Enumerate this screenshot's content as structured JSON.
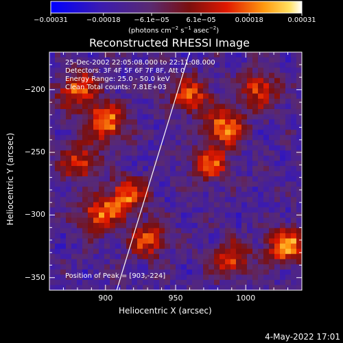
{
  "chart_data": {
    "type": "heatmap",
    "title": "Reconstructed RHESSI Image",
    "xlabel": "Heliocentric X (arcsec)",
    "ylabel": "Heliocentric Y (arcsec)",
    "xlim": [
      860,
      1040
    ],
    "ylim": [
      -360,
      -170
    ],
    "x_ticks": [
      900,
      950,
      1000
    ],
    "y_ticks": [
      -200,
      -250,
      -300,
      -350
    ],
    "x_tick_labels": [
      "900",
      "950",
      "1000"
    ],
    "y_tick_labels": [
      "−200",
      "−250",
      "−300",
      "−350"
    ],
    "colorbar": {
      "range": [
        -0.00031,
        0.00031
      ],
      "tick_values": [
        -0.00031,
        -0.00018,
        -6.1e-05,
        6.1e-05,
        0.00018,
        0.00031
      ],
      "tick_labels": [
        "−0.00031",
        "−0.00018",
        "−6.1e−05",
        "6.1e−05",
        "0.00018",
        "0.00031"
      ],
      "units_text": "(photons cm",
      "units_exp1": "−2",
      "units_mid1": " s",
      "units_exp2": "−1",
      "units_mid2": " asec",
      "units_exp3": "−2",
      "units_end": ")"
    },
    "info_lines": [
      "25-Dec-2002 22:05:08.000 to 22:11:08.000",
      "Detectors: 3F 4F 5F 6F 7F 8F, Att 0",
      "Energy Range: 25.0 - 50.0 keV",
      "Clean     Total counts: 7.81E+03"
    ],
    "peak_label": "Position of Peak = [903,-224]",
    "peak_position": [
      903,
      -224
    ],
    "limb_line": [
      [
        908,
        -360
      ],
      [
        960,
        -170
      ]
    ],
    "map_description_values": {
      "grid": false,
      "colormap": "blue-purple-red-orange-yellow-white"
    },
    "hot_spots": [
      {
        "x": 900,
        "y": -226,
        "level": 0.95
      },
      {
        "x": 882,
        "y": -258,
        "level": 0.7
      },
      {
        "x": 915,
        "y": -285,
        "level": 0.8
      },
      {
        "x": 895,
        "y": -300,
        "level": 0.75
      },
      {
        "x": 930,
        "y": -320,
        "level": 0.7
      },
      {
        "x": 960,
        "y": -205,
        "level": 0.75
      },
      {
        "x": 985,
        "y": -230,
        "level": 0.9
      },
      {
        "x": 975,
        "y": -260,
        "level": 0.7
      },
      {
        "x": 1030,
        "y": -325,
        "level": 0.95
      },
      {
        "x": 1010,
        "y": -200,
        "level": 0.7
      },
      {
        "x": 880,
        "y": -200,
        "level": 0.8
      },
      {
        "x": 990,
        "y": -335,
        "level": 0.7
      }
    ]
  },
  "footer": {
    "date": "4-May-2022 17:01"
  }
}
